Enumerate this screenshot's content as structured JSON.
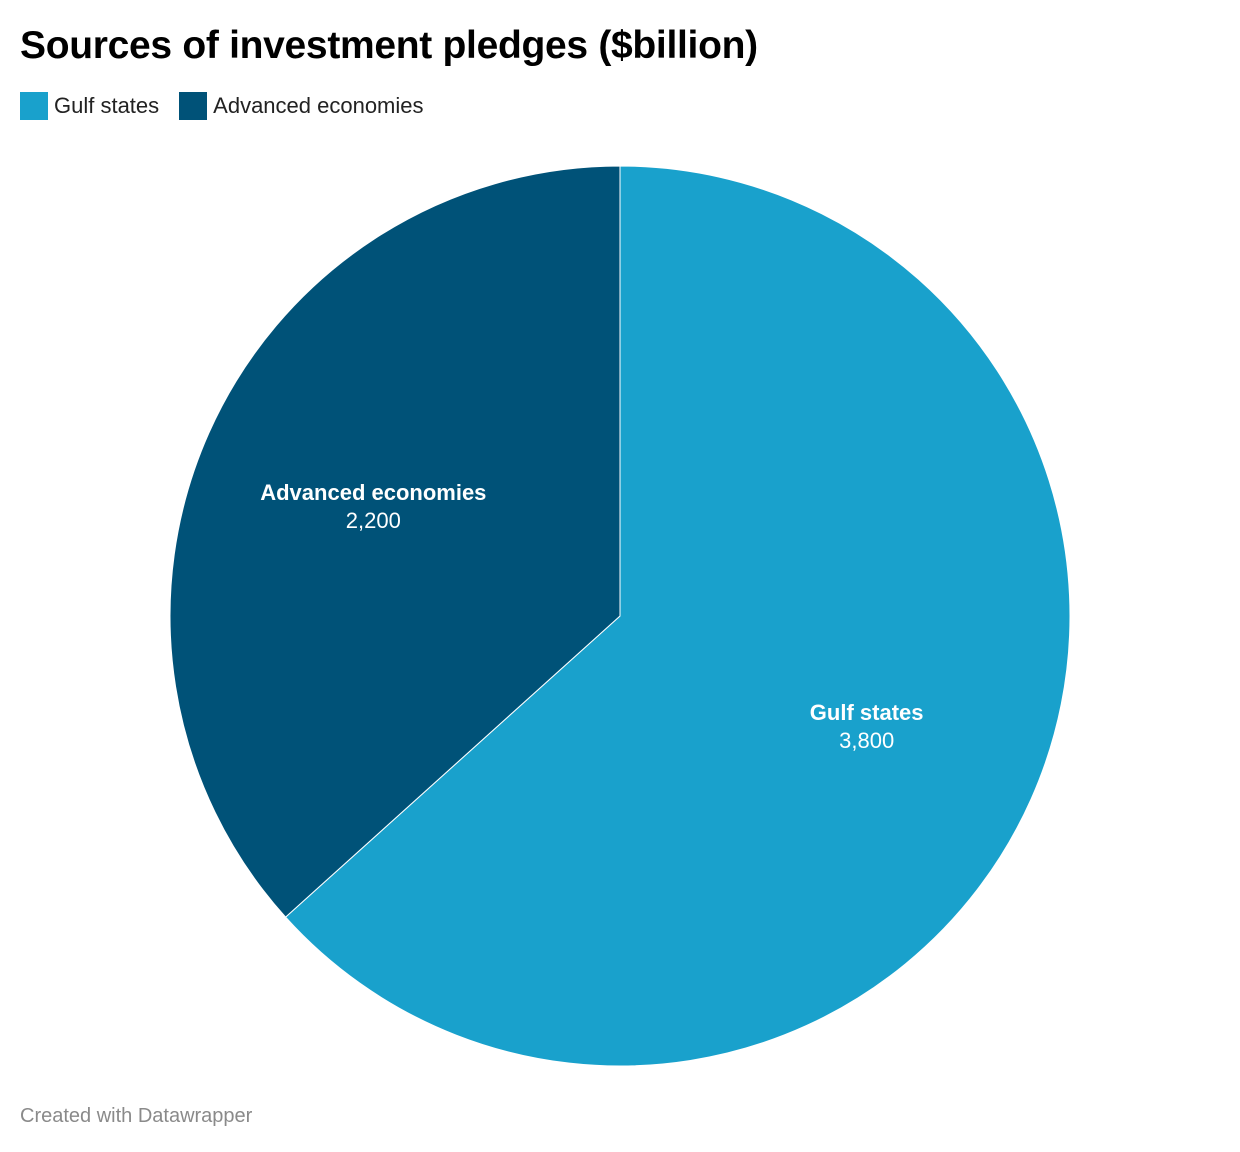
{
  "chart_data": {
    "type": "pie",
    "title": "Sources of investment pledges ($billion)",
    "categories": [
      "Gulf states",
      "Advanced economies"
    ],
    "values": [
      3800,
      2200
    ],
    "value_labels": [
      "3,800",
      "2,200"
    ],
    "colors": [
      "#19a1cc",
      "#005278"
    ],
    "legend_position": "top-left",
    "start_angle_deg": 0,
    "direction": "clockwise"
  },
  "legend": {
    "items": [
      {
        "label": "Gulf states",
        "color": "#19a1cc"
      },
      {
        "label": "Advanced economies",
        "color": "#005278"
      }
    ]
  },
  "footer": {
    "credit": "Created with Datawrapper"
  }
}
